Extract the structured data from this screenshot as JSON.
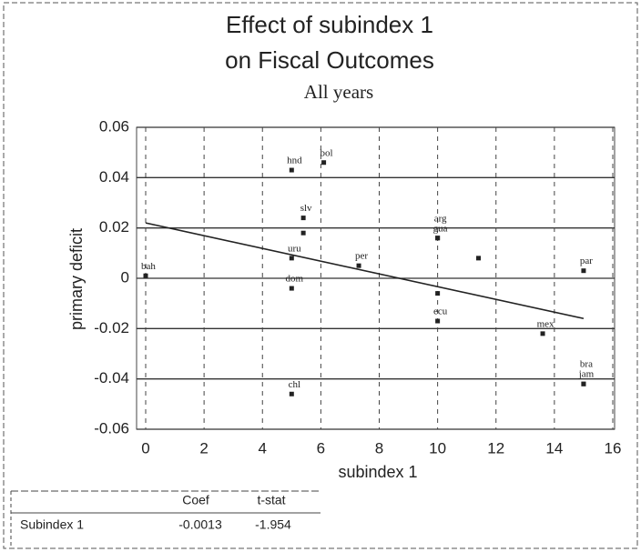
{
  "chart_data": {
    "type": "scatter",
    "title": [
      "Effect of subindex 1",
      "on Fiscal Outcomes"
    ],
    "subtitle": "All years",
    "x_label": "subindex 1",
    "y_label": "primary deficit",
    "x": [
      5.0,
      6.1,
      5.4,
      5.4,
      5.0,
      5.0,
      7.3,
      0,
      10,
      10,
      10,
      10,
      11.4,
      15,
      13.6,
      15,
      15,
      5.0
    ],
    "values": [
      0.043,
      0.046,
      0.024,
      0.018,
      0.008,
      -0.004,
      0.005,
      0.001,
      0.016,
      0.016,
      -0.006,
      -0.017,
      0.008,
      0.003,
      -0.022,
      -0.042,
      -0.042,
      -0.046
    ],
    "point_labels": [
      "hnd",
      "bol",
      "slv",
      null,
      "uru",
      "dom",
      "per",
      "bah",
      "gua",
      "arg",
      null,
      "ecu",
      null,
      "par",
      "mex",
      "jam",
      "bra",
      "chl"
    ],
    "fit_line": {
      "x": [
        0,
        15
      ],
      "y": [
        0.022,
        -0.016
      ]
    },
    "xlim": [
      0,
      16
    ],
    "ylim": [
      -0.06,
      0.06
    ],
    "xticks": [
      0,
      2,
      4,
      6,
      8,
      10,
      12,
      14,
      16
    ],
    "yticks": [
      0.06,
      0.04,
      0.02,
      0,
      -0.02,
      -0.04,
      -0.06
    ],
    "grid": true,
    "color": "#222"
  },
  "table": {
    "columns": [
      "Coef",
      "t-stat"
    ],
    "rows": [
      [
        "Subindex 1",
        "-0.0013",
        "-1.954"
      ]
    ]
  }
}
